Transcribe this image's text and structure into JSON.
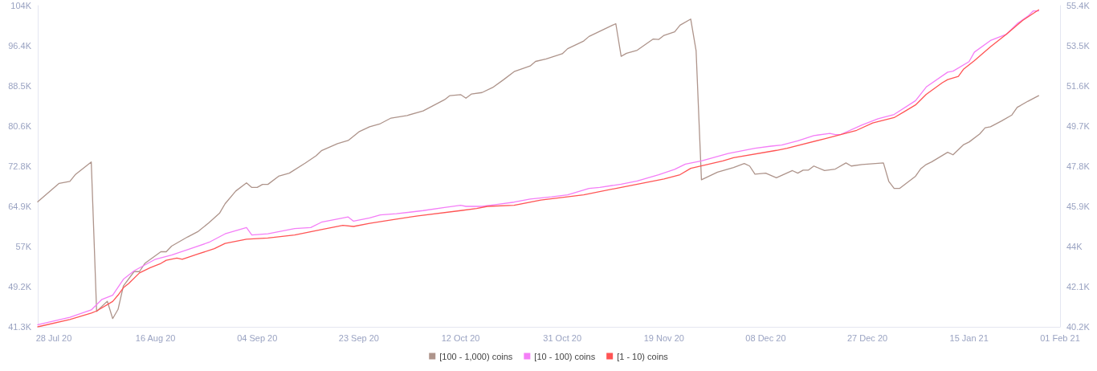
{
  "chart_data": {
    "type": "line",
    "marker": "none",
    "grid": false,
    "legend": "bottom",
    "xlim": [
      "2020-07-25",
      "2021-02-01"
    ],
    "xticks": [
      {
        "value": "2020-07-28",
        "label": "28 Jul 20"
      },
      {
        "value": "2020-08-16",
        "label": "16 Aug 20"
      },
      {
        "value": "2020-09-04",
        "label": "04 Sep 20"
      },
      {
        "value": "2020-09-23",
        "label": "23 Sep 20"
      },
      {
        "value": "2020-10-12",
        "label": "12 Oct 20"
      },
      {
        "value": "2020-10-31",
        "label": "31 Oct 20"
      },
      {
        "value": "2020-11-19",
        "label": "19 Nov 20"
      },
      {
        "value": "2020-12-08",
        "label": "08 Dec 20"
      },
      {
        "value": "2020-12-27",
        "label": "27 Dec 20"
      },
      {
        "value": "2021-01-15",
        "label": "15 Jan 21"
      },
      {
        "value": "2021-02-01",
        "label": "01 Feb 21"
      }
    ],
    "ylim": [
      41280,
      104240
    ],
    "yticks": [
      {
        "value": 41280,
        "label": "41.3K"
      },
      {
        "value": 49150,
        "label": "49.2K"
      },
      {
        "value": 57020,
        "label": "57K"
      },
      {
        "value": 64890,
        "label": "64.9K"
      },
      {
        "value": 72760,
        "label": "72.8K"
      },
      {
        "value": 80630,
        "label": "80.6K"
      },
      {
        "value": 88500,
        "label": "88.5K"
      },
      {
        "value": 96370,
        "label": "96.4K"
      },
      {
        "value": 104240,
        "label": "104K"
      }
    ],
    "y2lim": [
      40200,
      55400
    ],
    "y2ticks": [
      {
        "value": 40200,
        "label": "40.2K"
      },
      {
        "value": 42100,
        "label": "42.1K"
      },
      {
        "value": 44000,
        "label": "44K"
      },
      {
        "value": 45900,
        "label": "45.9K"
      },
      {
        "value": 47800,
        "label": "47.8K"
      },
      {
        "value": 49700,
        "label": "49.7K"
      },
      {
        "value": 51600,
        "label": "51.6K"
      },
      {
        "value": 53500,
        "label": "53.5K"
      },
      {
        "value": 55400,
        "label": "55.4K"
      }
    ],
    "series": [
      {
        "name": "[100 - 1,000) coins",
        "color": "#ae948b",
        "axis": "y",
        "x": [
          "2020-07-25",
          "2020-07-29",
          "2020-07-31",
          "2020-08-01",
          "2020-08-04",
          "2020-08-05",
          "2020-08-07",
          "2020-08-08",
          "2020-08-09",
          "2020-08-10",
          "2020-08-12",
          "2020-08-13",
          "2020-08-14",
          "2020-08-17",
          "2020-08-18",
          "2020-08-19",
          "2020-08-22",
          "2020-08-24",
          "2020-08-26",
          "2020-08-28",
          "2020-08-29",
          "2020-08-31",
          "2020-09-02",
          "2020-09-03",
          "2020-09-04",
          "2020-09-05",
          "2020-09-06",
          "2020-09-08",
          "2020-09-10",
          "2020-09-13",
          "2020-09-15",
          "2020-09-16",
          "2020-09-19",
          "2020-09-21",
          "2020-09-23",
          "2020-09-25",
          "2020-09-27",
          "2020-09-29",
          "2020-10-02",
          "2020-10-05",
          "2020-10-09",
          "2020-10-10",
          "2020-10-12",
          "2020-10-13",
          "2020-10-14",
          "2020-10-16",
          "2020-10-18",
          "2020-10-20",
          "2020-10-22",
          "2020-10-25",
          "2020-10-26",
          "2020-10-28",
          "2020-10-31",
          "2020-11-01",
          "2020-11-04",
          "2020-11-05",
          "2020-11-10",
          "2020-11-11",
          "2020-11-12",
          "2020-11-14",
          "2020-11-17",
          "2020-11-18",
          "2020-11-19",
          "2020-11-21",
          "2020-11-22",
          "2020-11-24",
          "2020-11-25",
          "2020-11-26",
          "2020-11-29",
          "2020-12-02",
          "2020-12-04",
          "2020-12-05",
          "2020-12-06",
          "2020-12-08",
          "2020-12-10",
          "2020-12-13",
          "2020-12-14",
          "2020-12-15",
          "2020-12-16",
          "2020-12-17",
          "2020-12-19",
          "2020-12-21",
          "2020-12-23",
          "2020-12-24",
          "2020-12-26",
          "2020-12-30",
          "2020-12-31",
          "2021-01-01",
          "2021-01-02",
          "2021-01-05",
          "2021-01-06",
          "2021-01-07",
          "2021-01-08",
          "2021-01-11",
          "2021-01-12",
          "2021-01-14",
          "2021-01-15",
          "2021-01-17",
          "2021-01-18",
          "2021-01-19",
          "2021-01-21",
          "2021-01-23",
          "2021-01-24",
          "2021-01-26",
          "2021-01-28"
        ],
        "values": [
          65800,
          69400,
          69800,
          71100,
          73600,
          44300,
          46300,
          42900,
          44700,
          49300,
          52100,
          52100,
          53700,
          56000,
          56000,
          57100,
          58900,
          60000,
          61700,
          63600,
          65400,
          67900,
          69500,
          68600,
          68600,
          69200,
          69200,
          70800,
          71400,
          73400,
          74800,
          75800,
          77200,
          77800,
          79500,
          80500,
          81100,
          82200,
          82700,
          83600,
          85800,
          86600,
          86800,
          86100,
          86900,
          87200,
          88200,
          89700,
          91300,
          92400,
          93300,
          93800,
          94800,
          95800,
          97300,
          98200,
          100700,
          94300,
          94900,
          95500,
          97700,
          97600,
          98400,
          99100,
          100400,
          101600,
          95400,
          70100,
          71600,
          72500,
          73300,
          72800,
          71200,
          71400,
          70500,
          71900,
          71400,
          72000,
          72000,
          72800,
          71900,
          72200,
          73400,
          72800,
          73100,
          73400,
          69800,
          68400,
          68400,
          70800,
          72300,
          73100,
          73600,
          75500,
          75000,
          77000,
          77500,
          79100,
          80300,
          80500,
          81600,
          82800,
          84300,
          85500,
          86600
        ]
      },
      {
        "name": "[10 - 100) coins",
        "color": "#f47ef7",
        "axis": "y2",
        "x": [
          "2020-07-25",
          "2020-07-31",
          "2020-08-04",
          "2020-08-06",
          "2020-08-08",
          "2020-08-10",
          "2020-08-12",
          "2020-08-16",
          "2020-08-19",
          "2020-08-22",
          "2020-08-26",
          "2020-08-29",
          "2020-09-02",
          "2020-09-03",
          "2020-09-06",
          "2020-09-11",
          "2020-09-14",
          "2020-09-16",
          "2020-09-21",
          "2020-09-22",
          "2020-09-25",
          "2020-09-27",
          "2020-09-30",
          "2020-10-05",
          "2020-10-09",
          "2020-10-12",
          "2020-10-13",
          "2020-10-16",
          "2020-10-19",
          "2020-10-22",
          "2020-10-25",
          "2020-10-29",
          "2020-11-01",
          "2020-11-05",
          "2020-11-07",
          "2020-11-11",
          "2020-11-14",
          "2020-11-18",
          "2020-11-21",
          "2020-11-23",
          "2020-11-26",
          "2020-12-01",
          "2020-12-06",
          "2020-12-09",
          "2020-12-11",
          "2020-12-14",
          "2020-12-17",
          "2020-12-20",
          "2020-12-21",
          "2020-12-22",
          "2020-12-26",
          "2020-12-29",
          "2021-01-01",
          "2021-01-05",
          "2021-01-07",
          "2021-01-11",
          "2021-01-12",
          "2021-01-15",
          "2021-01-16",
          "2021-01-19",
          "2021-01-22",
          "2021-01-24",
          "2021-01-26",
          "2021-01-27",
          "2021-01-28"
        ],
        "values": [
          40300,
          40650,
          41000,
          41500,
          41700,
          42450,
          42850,
          43400,
          43600,
          43850,
          44200,
          44600,
          44900,
          44550,
          44600,
          44850,
          44900,
          45150,
          45400,
          45200,
          45350,
          45500,
          45550,
          45700,
          45850,
          45950,
          45900,
          45900,
          46000,
          46100,
          46250,
          46350,
          46450,
          46750,
          46800,
          46950,
          47100,
          47400,
          47650,
          47900,
          48050,
          48400,
          48650,
          48750,
          48800,
          49000,
          49250,
          49350,
          49300,
          49300,
          49750,
          50050,
          50250,
          50900,
          51550,
          52250,
          52300,
          52750,
          53200,
          53750,
          54050,
          54550,
          54900,
          55150,
          55150
        ]
      },
      {
        "name": "[1 - 10) coins",
        "color": "#ff5454",
        "axis": "y2",
        "x": [
          "2020-07-25",
          "2020-07-31",
          "2020-08-04",
          "2020-08-05",
          "2020-08-08",
          "2020-08-09",
          "2020-08-10",
          "2020-08-11",
          "2020-08-13",
          "2020-08-15",
          "2020-08-17",
          "2020-08-18",
          "2020-08-20",
          "2020-08-21",
          "2020-08-24",
          "2020-08-27",
          "2020-08-29",
          "2020-09-02",
          "2020-09-06",
          "2020-09-11",
          "2020-09-16",
          "2020-09-20",
          "2020-09-22",
          "2020-09-25",
          "2020-09-30",
          "2020-10-04",
          "2020-10-12",
          "2020-10-15",
          "2020-10-17",
          "2020-10-22",
          "2020-10-27",
          "2020-11-04",
          "2020-11-11",
          "2020-11-19",
          "2020-11-22",
          "2020-11-24",
          "2020-11-30",
          "2020-12-02",
          "2020-12-10",
          "2020-12-12",
          "2020-12-19",
          "2020-12-22",
          "2020-12-25",
          "2020-12-28",
          "2021-01-01",
          "2021-01-03",
          "2021-01-05",
          "2021-01-07",
          "2021-01-10",
          "2021-01-11",
          "2021-01-13",
          "2021-01-14",
          "2021-01-16",
          "2021-01-19",
          "2021-01-22",
          "2021-01-25",
          "2021-01-28"
        ],
        "values": [
          40200,
          40550,
          40850,
          40950,
          41400,
          41700,
          42050,
          42250,
          42750,
          43000,
          43200,
          43350,
          43450,
          43400,
          43650,
          43900,
          44150,
          44350,
          44400,
          44550,
          44800,
          45000,
          44950,
          45100,
          45300,
          45450,
          45700,
          45800,
          45900,
          45950,
          46200,
          46450,
          46800,
          47200,
          47400,
          47700,
          48050,
          48200,
          48550,
          48650,
          49100,
          49300,
          49500,
          49850,
          50100,
          50400,
          50700,
          51200,
          51750,
          51900,
          52050,
          52400,
          52800,
          53450,
          54050,
          54700,
          55200
        ]
      }
    ]
  }
}
